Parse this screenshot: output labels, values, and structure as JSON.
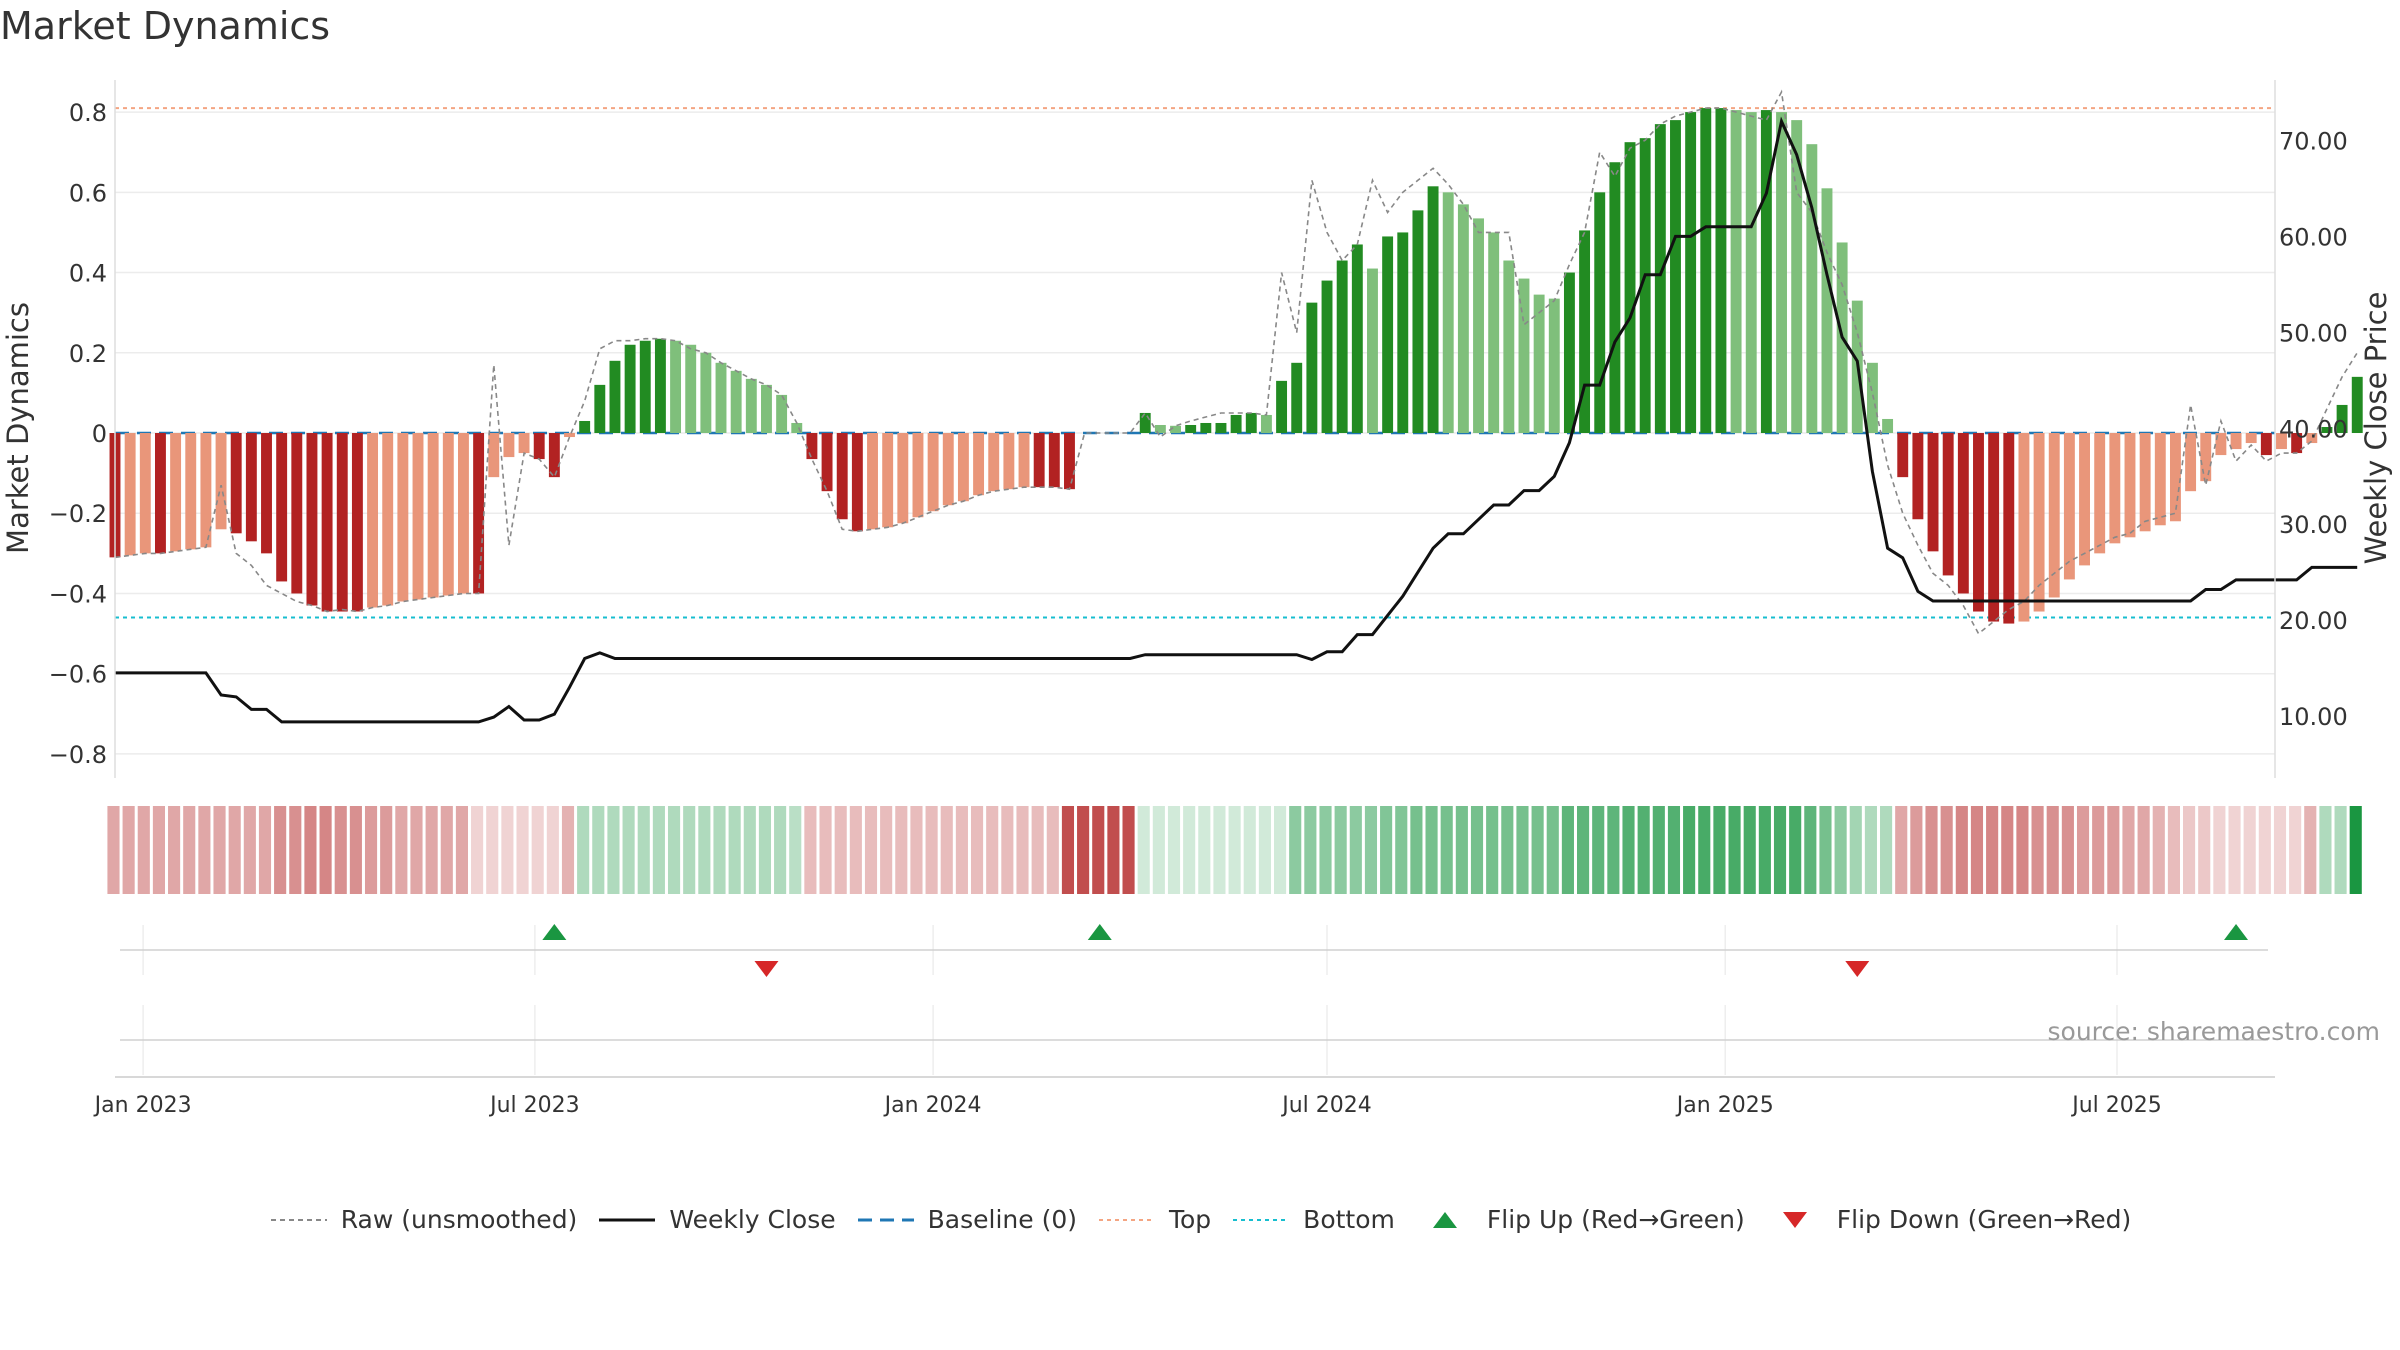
{
  "chart_data": {
    "type": "bar",
    "title": "Market Dynamics",
    "ylabel": "Market Dynamics",
    "y2label": "Weekly Close Price",
    "ylim": [
      -0.86,
      0.88
    ],
    "y2lim": [
      3.55,
      76.3
    ],
    "yticks": [
      0.8,
      0.6,
      0.4,
      0.2,
      0,
      -0.2,
      -0.4,
      -0.6,
      -0.8
    ],
    "ytick_labels": [
      "0.8",
      "0.6",
      "0.4",
      "0.2",
      "0",
      "−0.2",
      "−0.4",
      "−0.6",
      "−0.8"
    ],
    "y2ticks": [
      70,
      60,
      50,
      40,
      30,
      20,
      10
    ],
    "y2tick_labels": [
      "70.00",
      "60.00",
      "50.00",
      "40.00",
      "30.00",
      "20.00",
      "10.00"
    ],
    "x_range": [
      "2022-12-19",
      "2025-09-12"
    ],
    "xticks": [
      {
        "date": "2023-01-01",
        "label": "Jan 2023"
      },
      {
        "date": "2023-07-01",
        "label": "Jul 2023"
      },
      {
        "date": "2024-01-01",
        "label": "Jan 2024"
      },
      {
        "date": "2024-07-01",
        "label": "Jul 2024"
      },
      {
        "date": "2025-01-01",
        "label": "Jan 2025"
      },
      {
        "date": "2025-07-01",
        "label": "Jul 2025"
      }
    ],
    "start_date": "2022-12-19",
    "top_level": 0.81,
    "bottom_level": -0.46,
    "baseline": 0,
    "colors": {
      "green_strong": "#228b22",
      "green_light": "#7fbf7b",
      "red_strong": "#b22222",
      "red_light": "#e9967a",
      "top_line": "#f4a582",
      "bottom_line": "#17becf",
      "baseline": "#1f77b4",
      "raw": "#888888",
      "close": "#111111",
      "flip_up": "#1a9641",
      "flip_down": "#d62728"
    },
    "momentum": [
      -0.31,
      -0.305,
      -0.3,
      -0.3,
      -0.295,
      -0.29,
      -0.285,
      -0.24,
      -0.25,
      -0.27,
      -0.3,
      -0.37,
      -0.4,
      -0.43,
      -0.445,
      -0.445,
      -0.445,
      -0.435,
      -0.43,
      -0.42,
      -0.415,
      -0.41,
      -0.405,
      -0.4,
      -0.4,
      -0.11,
      -0.06,
      -0.05,
      -0.065,
      -0.11,
      -0.01,
      0.03,
      0.12,
      0.18,
      0.22,
      0.23,
      0.235,
      0.23,
      0.22,
      0.2,
      0.175,
      0.155,
      0.135,
      0.12,
      0.095,
      0.025,
      -0.065,
      -0.145,
      -0.215,
      -0.245,
      -0.24,
      -0.235,
      -0.225,
      -0.21,
      -0.195,
      -0.18,
      -0.17,
      -0.155,
      -0.145,
      -0.14,
      -0.135,
      -0.135,
      -0.135,
      -0.14,
      0,
      0,
      0,
      0,
      0.05,
      0.02,
      0.018,
      0.02,
      0.025,
      0.025,
      0.045,
      0.05,
      0.045,
      0.13,
      0.175,
      0.325,
      0.38,
      0.43,
      0.47,
      0.41,
      0.49,
      0.5,
      0.555,
      0.615,
      0.6,
      0.57,
      0.535,
      0.5,
      0.43,
      0.385,
      0.345,
      0.335,
      0.4,
      0.505,
      0.6,
      0.675,
      0.725,
      0.735,
      0.77,
      0.78,
      0.8,
      0.81,
      0.81,
      0.805,
      0.8,
      0.805,
      0.8,
      0.78,
      0.72,
      0.61,
      0.475,
      0.33,
      0.175,
      0.035,
      -0.11,
      -0.215,
      -0.295,
      -0.355,
      -0.4,
      -0.445,
      -0.47,
      -0.475,
      -0.47,
      -0.445,
      -0.41,
      -0.365,
      -0.33,
      -0.3,
      -0.275,
      -0.26,
      -0.245,
      -0.23,
      -0.22,
      -0.145,
      -0.12,
      -0.055,
      -0.04,
      -0.025,
      -0.055,
      -0.04,
      -0.05,
      -0.025,
      0.015,
      0.07,
      0.14
    ],
    "raw": [
      -0.31,
      -0.305,
      -0.3,
      -0.3,
      -0.295,
      -0.29,
      -0.285,
      -0.13,
      -0.3,
      -0.33,
      -0.38,
      -0.4,
      -0.42,
      -0.43,
      -0.445,
      -0.44,
      -0.445,
      -0.435,
      -0.43,
      -0.42,
      -0.415,
      -0.41,
      -0.405,
      -0.4,
      -0.4,
      0.17,
      -0.28,
      -0.05,
      -0.065,
      -0.11,
      -0.01,
      0.08,
      0.21,
      0.23,
      0.23,
      0.235,
      0.235,
      0.23,
      0.21,
      0.2,
      0.175,
      0.155,
      0.135,
      0.12,
      0.095,
      0.025,
      -0.065,
      -0.145,
      -0.24,
      -0.245,
      -0.24,
      -0.235,
      -0.225,
      -0.21,
      -0.195,
      -0.18,
      -0.17,
      -0.155,
      -0.145,
      -0.14,
      -0.135,
      -0.135,
      -0.135,
      -0.14,
      0,
      0,
      0,
      0,
      0.05,
      -0.01,
      0.018,
      0.03,
      0.04,
      0.05,
      0.05,
      0.05,
      0.045,
      0.4,
      0.25,
      0.63,
      0.5,
      0.43,
      0.47,
      0.63,
      0.55,
      0.6,
      0.63,
      0.66,
      0.62,
      0.57,
      0.5,
      0.5,
      0.5,
      0.27,
      0.3,
      0.33,
      0.42,
      0.5,
      0.7,
      0.64,
      0.71,
      0.73,
      0.77,
      0.79,
      0.8,
      0.81,
      0.81,
      0.8,
      0.79,
      0.78,
      0.85,
      0.6,
      0.55,
      0.45,
      0.37,
      0.25,
      0.1,
      -0.08,
      -0.2,
      -0.28,
      -0.35,
      -0.38,
      -0.43,
      -0.5,
      -0.47,
      -0.44,
      -0.42,
      -0.38,
      -0.35,
      -0.32,
      -0.3,
      -0.28,
      -0.26,
      -0.25,
      -0.22,
      -0.21,
      -0.2,
      0.07,
      -0.13,
      0.03,
      -0.07,
      -0.03,
      -0.07,
      -0.05,
      -0.05,
      -0.02,
      0.06,
      0.14,
      0.2
    ],
    "close": [
      14.5,
      14.5,
      14.5,
      14.5,
      14.5,
      14.5,
      14.5,
      12.2,
      12.0,
      10.7,
      10.7,
      9.4,
      9.4,
      9.4,
      9.4,
      9.4,
      9.4,
      9.4,
      9.4,
      9.4,
      9.4,
      9.4,
      9.4,
      9.4,
      9.4,
      9.9,
      11.0,
      9.6,
      9.6,
      10.2,
      13.0,
      16.0,
      16.6,
      16.0,
      16.0,
      16.0,
      16.0,
      16.0,
      16.0,
      16.0,
      16.0,
      16.0,
      16.0,
      16.0,
      16.0,
      16.0,
      16.0,
      16.0,
      16.0,
      16.0,
      16.0,
      16.0,
      16.0,
      16.0,
      16.0,
      16.0,
      16.0,
      16.0,
      16.0,
      16.0,
      16.0,
      16.0,
      16.0,
      16.0,
      16.0,
      16.0,
      16.0,
      16.0,
      16.4,
      16.4,
      16.4,
      16.4,
      16.4,
      16.4,
      16.4,
      16.4,
      16.4,
      16.4,
      16.4,
      15.9,
      16.7,
      16.7,
      18.5,
      18.5,
      20.5,
      22.5,
      25.0,
      27.5,
      29.0,
      29.0,
      30.5,
      32.0,
      32.0,
      33.5,
      33.5,
      35.0,
      38.5,
      44.5,
      44.5,
      49.0,
      51.5,
      56.0,
      56.0,
      60.0,
      60.0,
      61.0,
      61.0,
      61.0,
      61.0,
      64.5,
      72.0,
      68.5,
      63.0,
      56.0,
      49.5,
      47.0,
      35.5,
      27.5,
      26.5,
      23.0,
      22.0,
      22.0,
      22.0,
      22.0,
      22.0,
      22.0,
      22.0,
      22.0,
      22.0,
      22.0,
      22.0,
      22.0,
      22.0,
      22.0,
      22.0,
      22.0,
      22.0,
      22.0,
      23.2,
      23.2,
      24.2,
      24.2,
      24.2,
      24.2,
      24.2,
      25.5,
      25.5,
      25.5,
      25.5
    ],
    "band_opacity": [
      0.4,
      0.4,
      0.4,
      0.4,
      0.4,
      0.4,
      0.4,
      0.4,
      0.4,
      0.4,
      0.4,
      0.5,
      0.5,
      0.55,
      0.55,
      0.5,
      0.5,
      0.45,
      0.45,
      0.4,
      0.4,
      0.4,
      0.4,
      0.4,
      0.2,
      0.2,
      0.2,
      0.2,
      0.2,
      0.2,
      0.35,
      0.35,
      0.35,
      0.35,
      0.35,
      0.35,
      0.35,
      0.35,
      0.35,
      0.35,
      0.35,
      0.35,
      0.35,
      0.35,
      0.35,
      0.3,
      0.3,
      0.3,
      0.3,
      0.3,
      0.3,
      0.3,
      0.3,
      0.3,
      0.3,
      0.3,
      0.3,
      0.3,
      0.3,
      0.3,
      0.3,
      0.3,
      0.3,
      0.8,
      0.8,
      0.8,
      0.8,
      0.8,
      0.2,
      0.2,
      0.2,
      0.2,
      0.2,
      0.2,
      0.2,
      0.2,
      0.2,
      0.2,
      0.5,
      0.5,
      0.5,
      0.5,
      0.5,
      0.5,
      0.55,
      0.55,
      0.6,
      0.6,
      0.6,
      0.6,
      0.6,
      0.6,
      0.6,
      0.6,
      0.6,
      0.6,
      0.7,
      0.7,
      0.7,
      0.7,
      0.75,
      0.75,
      0.75,
      0.75,
      0.8,
      0.8,
      0.8,
      0.8,
      0.8,
      0.8,
      0.8,
      0.8,
      0.7,
      0.6,
      0.5,
      0.4,
      0.35,
      0.35,
      0.4,
      0.45,
      0.5,
      0.5,
      0.55,
      0.55,
      0.55,
      0.55,
      0.55,
      0.5,
      0.5,
      0.5,
      0.45,
      0.45,
      0.45,
      0.4,
      0.4,
      0.35,
      0.3,
      0.25,
      0.25,
      0.2,
      0.2,
      0.2,
      0.2,
      0.2,
      0.2,
      0.35,
      0.35,
      0.35
    ],
    "flips": [
      {
        "date": "2023-07-10",
        "type": "up"
      },
      {
        "date": "2023-10-16",
        "type": "down"
      },
      {
        "date": "2024-03-18",
        "type": "up"
      },
      {
        "date": "2025-03-03",
        "type": "down"
      },
      {
        "date": "2025-08-25",
        "type": "up"
      }
    ]
  },
  "source_text": "source: sharemaestro.com",
  "legend": [
    {
      "key": "raw",
      "label": "Raw (unsmoothed)"
    },
    {
      "key": "close",
      "label": "Weekly Close"
    },
    {
      "key": "baseline",
      "label": "Baseline (0)"
    },
    {
      "key": "top",
      "label": "Top"
    },
    {
      "key": "bottom",
      "label": "Bottom"
    },
    {
      "key": "flip_up",
      "label": "Flip Up (Red→Green)"
    },
    {
      "key": "flip_down",
      "label": "Flip Down (Green→Red)"
    }
  ]
}
